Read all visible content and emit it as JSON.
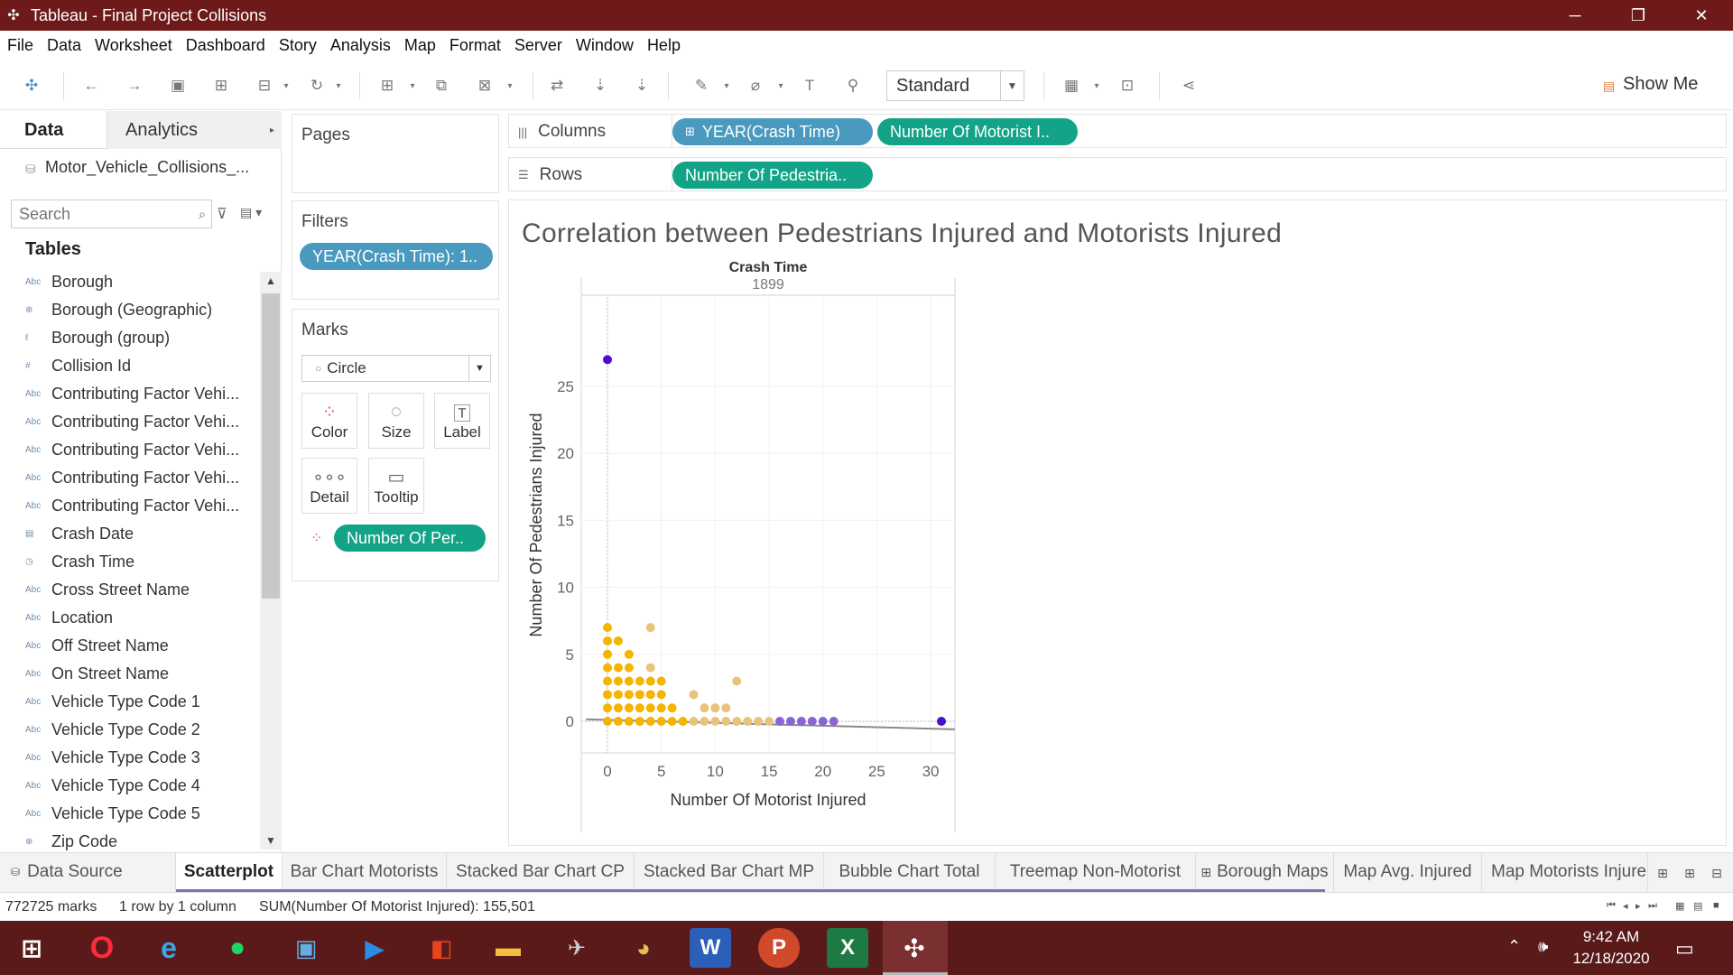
{
  "window": {
    "title": "Tableau - Final Project Collisions",
    "controls": [
      "─",
      "❐",
      "✕"
    ]
  },
  "menu": [
    "File",
    "Data",
    "Worksheet",
    "Dashboard",
    "Story",
    "Analysis",
    "Map",
    "Format",
    "Server",
    "Window",
    "Help"
  ],
  "toolbar": {
    "fit_select": "Standard",
    "show_me_label": "Show Me"
  },
  "data_pane": {
    "tab_data": "Data",
    "tab_analytics": "Analytics",
    "datasource": "Motor_Vehicle_Collisions_...",
    "search_placeholder": "Search",
    "tables_heading": "Tables",
    "fields": [
      {
        "type": "Abc",
        "name": "Borough"
      },
      {
        "type": "⊕",
        "name": "Borough (Geographic)"
      },
      {
        "type": "ℓ",
        "name": "Borough (group)"
      },
      {
        "type": "#",
        "name": "Collision Id"
      },
      {
        "type": "Abc",
        "name": "Contributing Factor Vehi..."
      },
      {
        "type": "Abc",
        "name": "Contributing Factor Vehi..."
      },
      {
        "type": "Abc",
        "name": "Contributing Factor Vehi..."
      },
      {
        "type": "Abc",
        "name": "Contributing Factor Vehi..."
      },
      {
        "type": "Abc",
        "name": "Contributing Factor Vehi..."
      },
      {
        "type": "▤",
        "name": "Crash Date"
      },
      {
        "type": "◷",
        "name": "Crash Time"
      },
      {
        "type": "Abc",
        "name": "Cross Street Name"
      },
      {
        "type": "Abc",
        "name": "Location"
      },
      {
        "type": "Abc",
        "name": "Off Street Name"
      },
      {
        "type": "Abc",
        "name": "On Street Name"
      },
      {
        "type": "Abc",
        "name": "Vehicle Type Code 1"
      },
      {
        "type": "Abc",
        "name": "Vehicle Type Code 2"
      },
      {
        "type": "Abc",
        "name": "Vehicle Type Code 3"
      },
      {
        "type": "Abc",
        "name": "Vehicle Type Code 4"
      },
      {
        "type": "Abc",
        "name": "Vehicle Type Code 5"
      },
      {
        "type": "⊕",
        "name": "Zip Code"
      }
    ]
  },
  "cards": {
    "pages_title": "Pages",
    "filters_title": "Filters",
    "filter_pill": "YEAR(Crash Time): 1..",
    "marks_title": "Marks",
    "mark_type": "Circle",
    "mark_buttons": {
      "color": "Color",
      "size": "Size",
      "label": "Label",
      "detail": "Detail",
      "tooltip": "Tooltip"
    },
    "color_pill": "Number Of Per.."
  },
  "shelves": {
    "columns_label": "Columns",
    "rows_label": "Rows",
    "columns_pills": [
      "YEAR(Crash Time)",
      "Number Of Motorist I.."
    ],
    "columns_pill_prefix": "⊞",
    "rows_pill": "Number Of Pedestria.."
  },
  "view": {
    "title": "Correlation between Pedestrians Injured and Motorists Injured",
    "header_field": "Crash Time",
    "header_value": "1899"
  },
  "chart_data": {
    "type": "scatter",
    "title": "Correlation between Pedestrians Injured and Motorists Injured",
    "column_header": "Crash Time",
    "column_value": "1899",
    "xlabel": "Number Of Motorist Injured",
    "ylabel": "Number Of Pedestrians Injured",
    "xlim": [
      -2,
      33
    ],
    "ylim": [
      -3,
      31
    ],
    "xticks": [
      0,
      5,
      10,
      15,
      20,
      25,
      30
    ],
    "yticks": [
      0,
      5,
      10,
      15,
      20,
      25
    ],
    "grid": true,
    "trend_line": {
      "x": [
        -2,
        33
      ],
      "y": [
        0.15,
        -0.6
      ],
      "color": "#8a8a8a"
    },
    "colors": {
      "low": "#f5b400",
      "mid": "#e8c37a",
      "high": "#8a64d6",
      "max": "#4a10c8"
    },
    "points": [
      {
        "x": 0,
        "y": 27,
        "c": "max"
      },
      {
        "x": 31,
        "y": 0,
        "c": "max"
      },
      {
        "x": 0,
        "y": 0,
        "c": "low"
      },
      {
        "x": 1,
        "y": 0,
        "c": "low"
      },
      {
        "x": 2,
        "y": 0,
        "c": "low"
      },
      {
        "x": 3,
        "y": 0,
        "c": "low"
      },
      {
        "x": 4,
        "y": 0,
        "c": "low"
      },
      {
        "x": 5,
        "y": 0,
        "c": "low"
      },
      {
        "x": 6,
        "y": 0,
        "c": "low"
      },
      {
        "x": 7,
        "y": 0,
        "c": "low"
      },
      {
        "x": 8,
        "y": 0,
        "c": "mid"
      },
      {
        "x": 9,
        "y": 0,
        "c": "mid"
      },
      {
        "x": 10,
        "y": 0,
        "c": "mid"
      },
      {
        "x": 11,
        "y": 0,
        "c": "mid"
      },
      {
        "x": 12,
        "y": 0,
        "c": "mid"
      },
      {
        "x": 13,
        "y": 0,
        "c": "mid"
      },
      {
        "x": 14,
        "y": 0,
        "c": "mid"
      },
      {
        "x": 15,
        "y": 0,
        "c": "mid"
      },
      {
        "x": 16,
        "y": 0,
        "c": "high"
      },
      {
        "x": 17,
        "y": 0,
        "c": "high"
      },
      {
        "x": 18,
        "y": 0,
        "c": "high"
      },
      {
        "x": 19,
        "y": 0,
        "c": "high"
      },
      {
        "x": 20,
        "y": 0,
        "c": "high"
      },
      {
        "x": 21,
        "y": 0,
        "c": "high"
      },
      {
        "x": 0,
        "y": 1,
        "c": "low"
      },
      {
        "x": 1,
        "y": 1,
        "c": "low"
      },
      {
        "x": 2,
        "y": 1,
        "c": "low"
      },
      {
        "x": 3,
        "y": 1,
        "c": "low"
      },
      {
        "x": 4,
        "y": 1,
        "c": "low"
      },
      {
        "x": 5,
        "y": 1,
        "c": "low"
      },
      {
        "x": 6,
        "y": 1,
        "c": "low"
      },
      {
        "x": 9,
        "y": 1,
        "c": "mid"
      },
      {
        "x": 10,
        "y": 1,
        "c": "mid"
      },
      {
        "x": 11,
        "y": 1,
        "c": "mid"
      },
      {
        "x": 0,
        "y": 2,
        "c": "low"
      },
      {
        "x": 1,
        "y": 2,
        "c": "low"
      },
      {
        "x": 2,
        "y": 2,
        "c": "low"
      },
      {
        "x": 3,
        "y": 2,
        "c": "low"
      },
      {
        "x": 4,
        "y": 2,
        "c": "low"
      },
      {
        "x": 5,
        "y": 2,
        "c": "low"
      },
      {
        "x": 8,
        "y": 2,
        "c": "mid"
      },
      {
        "x": 0,
        "y": 3,
        "c": "low"
      },
      {
        "x": 1,
        "y": 3,
        "c": "low"
      },
      {
        "x": 2,
        "y": 3,
        "c": "low"
      },
      {
        "x": 3,
        "y": 3,
        "c": "low"
      },
      {
        "x": 4,
        "y": 3,
        "c": "low"
      },
      {
        "x": 5,
        "y": 3,
        "c": "low"
      },
      {
        "x": 12,
        "y": 3,
        "c": "mid"
      },
      {
        "x": 0,
        "y": 4,
        "c": "low"
      },
      {
        "x": 1,
        "y": 4,
        "c": "low"
      },
      {
        "x": 2,
        "y": 4,
        "c": "low"
      },
      {
        "x": 4,
        "y": 4,
        "c": "mid"
      },
      {
        "x": 0,
        "y": 5,
        "c": "low"
      },
      {
        "x": 2,
        "y": 5,
        "c": "low"
      },
      {
        "x": 0,
        "y": 6,
        "c": "low"
      },
      {
        "x": 1,
        "y": 6,
        "c": "low"
      },
      {
        "x": 0,
        "y": 7,
        "c": "low"
      },
      {
        "x": 4,
        "y": 7,
        "c": "mid"
      }
    ]
  },
  "sheets": {
    "data_source": "Data Source",
    "tabs": [
      "Scatterplot",
      "Bar Chart Motorists",
      "Stacked Bar Chart CP",
      "Stacked Bar Chart MP",
      "Bubble Chart Total",
      "Treemap Non-Motorist",
      "Borough Maps",
      "Map Avg. Injured",
      "Map Motorists Injure"
    ],
    "active": "Scatterplot"
  },
  "status": {
    "marks": "772725 marks",
    "layout": "1 row by 1 column",
    "sum": "SUM(Number Of Motorist Injured): 155,501"
  },
  "taskbar": {
    "time": "9:42 AM",
    "date": "12/18/2020"
  }
}
